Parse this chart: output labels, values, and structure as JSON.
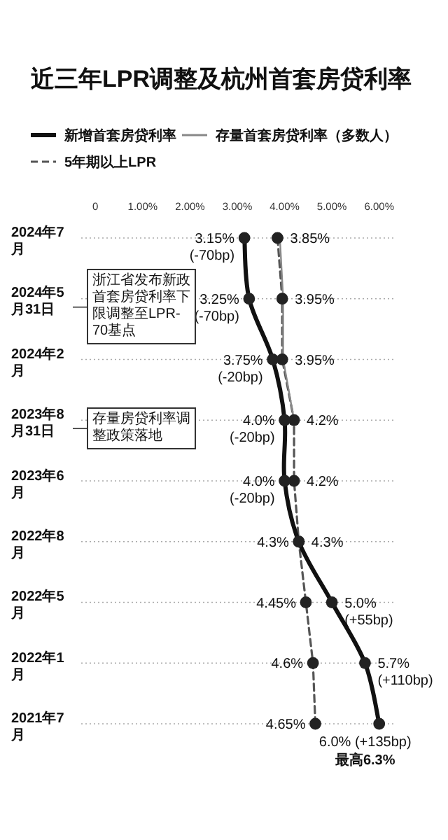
{
  "chart_data": {
    "type": "line",
    "orientation": "horizontal",
    "title": "近三年LPR调整及杭州首套房贷利率",
    "categories": [
      "2024年7月",
      "2024年5月31日",
      "2024年2月",
      "2023年8月31日",
      "2023年6月",
      "2022年8月",
      "2022年5月",
      "2022年1月",
      "2021年7月"
    ],
    "series": [
      {
        "name": "新增首套房贷利率",
        "color": "#111111",
        "marker": "circle",
        "line_style": "solid",
        "values": [
          3.15,
          3.25,
          3.75,
          4.0,
          4.0,
          4.3,
          5.0,
          5.7,
          6.0
        ],
        "value_labels": [
          "3.15% (-70bp)",
          "3.25% (-70bp)",
          "3.75% (-20bp)",
          "4.0% (-20bp)",
          "4.0% (-20bp)",
          "4.3%",
          "5.0% (+55bp)",
          "5.7% (+110bp)",
          "6.0% (+135bp)"
        ]
      },
      {
        "name": "存量首套房贷利率（多数人）",
        "color": "#888888",
        "marker": "none",
        "line_style": "solid",
        "values": [
          3.9,
          3.97,
          3.97,
          4.2,
          null,
          null,
          null,
          null,
          null
        ]
      },
      {
        "name": "5年期以上LPR",
        "color": "#555555",
        "marker": "circle",
        "line_style": "dashed",
        "values": [
          3.85,
          3.95,
          3.95,
          4.2,
          4.2,
          4.3,
          4.45,
          4.6,
          4.65
        ],
        "value_labels": [
          "3.85%",
          "3.95%",
          "3.95%",
          "4.2%",
          "4.2%",
          "4.3%",
          "4.45%",
          "4.6%",
          "4.65%"
        ]
      }
    ],
    "xlim": [
      -0.3,
      6.3
    ],
    "xticks": [
      0,
      {
        "value": 1,
        "label": "1.00%"
      },
      {
        "value": 2,
        "label": "2.00%"
      },
      {
        "value": 3,
        "label": "3.00%"
      },
      {
        "value": 4,
        "label": "4.00%"
      },
      {
        "value": 5,
        "label": "5.00%"
      },
      {
        "value": 6,
        "label": "6.00%"
      }
    ],
    "grid": "y",
    "legend": "top",
    "annotations": [
      "浙江省发布新政首套房贷利率下限调整至LPR-70基点",
      "存量房贷利率调整政策落地",
      {
        "text": "最高6.3%",
        "x": 6.0,
        "y": "2021年7月"
      }
    ]
  }
}
